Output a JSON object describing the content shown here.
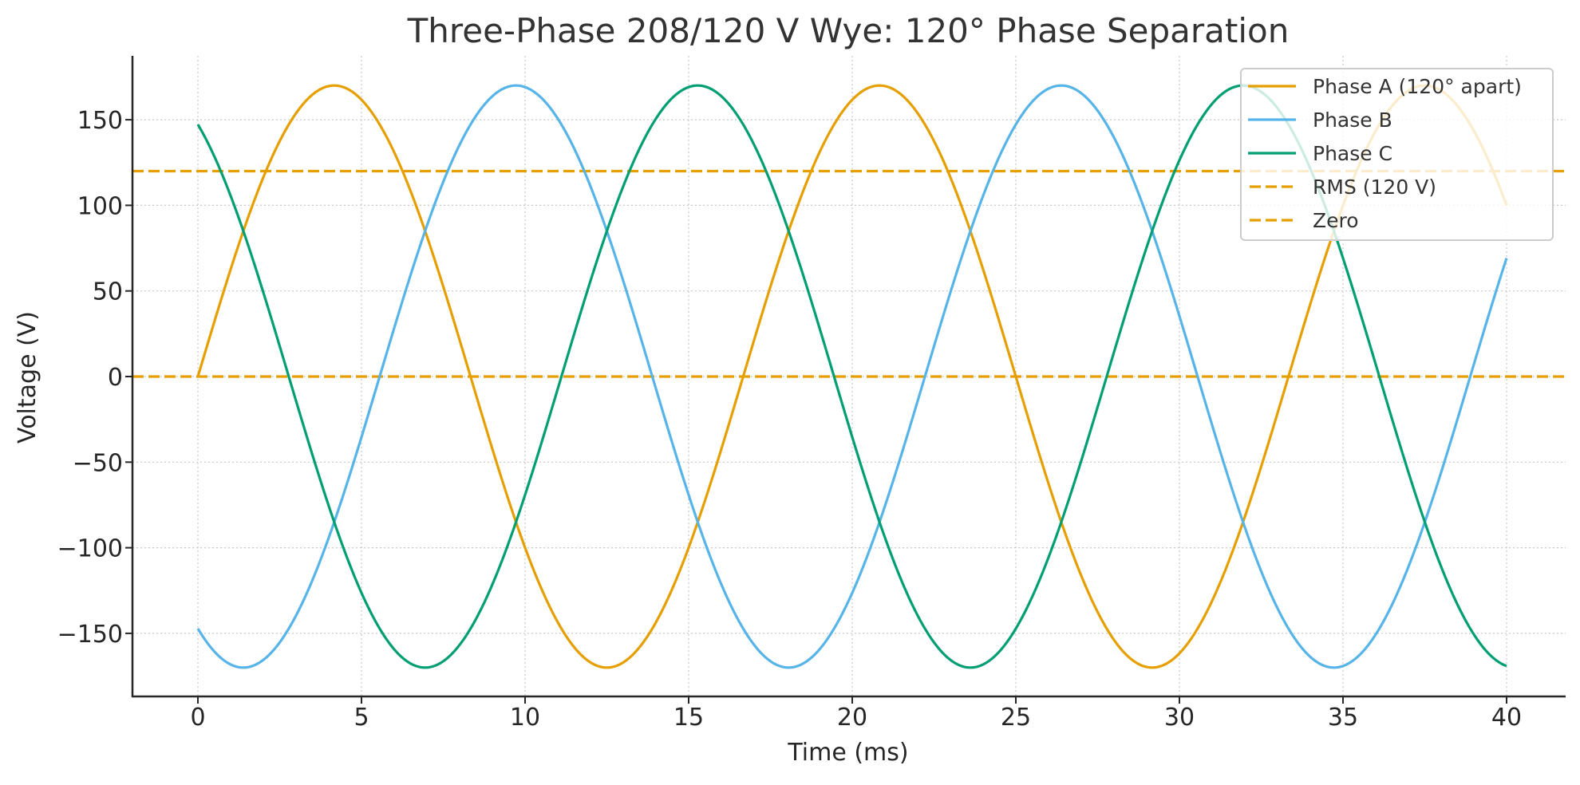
{
  "chart_data": {
    "type": "line",
    "title": "Three-Phase 208/120 V Wye: 120° Phase Separation",
    "xlabel": "Time (ms)",
    "ylabel": "Voltage (V)",
    "xlim": [
      -2,
      42
    ],
    "ylim": [
      -187,
      187
    ],
    "xticks": [
      0,
      5,
      10,
      15,
      20,
      25,
      30,
      35,
      40
    ],
    "yticks": [
      -150,
      -100,
      -50,
      0,
      50,
      100,
      150
    ],
    "ytick_labels": [
      "−150",
      "−100",
      "−50",
      "0",
      "50",
      "100",
      "150"
    ],
    "grid": true,
    "legend_position": "upper right",
    "waveform": {
      "amplitude_v": 170,
      "frequency_hz": 60,
      "t_start_ms": 0,
      "t_end_ms": 40
    },
    "x": [
      0,
      1,
      2,
      3,
      4,
      5,
      6,
      7,
      8,
      9,
      10,
      11,
      12,
      13,
      14,
      15,
      16,
      17,
      18,
      19,
      20,
      21,
      22,
      23,
      24,
      25,
      26,
      27,
      28,
      29,
      30,
      31,
      32,
      33,
      34,
      35,
      36,
      37,
      38,
      39,
      40
    ],
    "series": [
      {
        "name": "Phase A (120° apart)",
        "color": "#E69F00",
        "style": "solid",
        "phase_deg": 0,
        "values": [
          0,
          62.6,
          116.4,
          153.8,
          169.7,
          161.7,
          131.0,
          81.9,
          21.3,
          -42.3,
          -99.9,
          -143.5,
          -167.0,
          -167.0,
          -143.5,
          -99.9,
          -42.3,
          21.3,
          81.9,
          131.0,
          161.7,
          169.7,
          153.8,
          116.4,
          62.6,
          0,
          -62.6,
          -116.4,
          -153.8,
          -169.7,
          -161.7,
          -131.0,
          -81.9,
          -21.3,
          42.3,
          99.9,
          143.5,
          167.0,
          167.0,
          143.5,
          99.9
        ]
      },
      {
        "name": "Phase B",
        "color": "#56B4E9",
        "style": "solid",
        "phase_deg": -120,
        "values": [
          -147.2,
          -168.2,
          -165.5,
          -139.6,
          -94.1,
          -35.3,
          28.4,
          88.1,
          135.4,
          163.7,
          169.1,
          150.7,
          111.1,
          55.9,
          -7.1,
          -69.1,
          -121.5,
          -156.7,
          -170.0,
          -159.3,
          -126.3,
          -75.6,
          -14.2,
          49.1,
          105.6,
          147.2,
          168.2,
          165.5,
          139.6,
          94.1,
          35.3,
          -28.4,
          -88.1,
          -135.4,
          -163.7,
          -169.1,
          -150.7,
          -111.1,
          -55.9,
          7.1,
          69.1
        ]
      },
      {
        "name": "Phase C",
        "color": "#009E73",
        "style": "solid",
        "phase_deg": 120,
        "values": [
          147.2,
          105.6,
          49.1,
          -14.2,
          -75.6,
          -126.3,
          -159.3,
          -170.0,
          -156.7,
          -121.5,
          -69.1,
          -7.1,
          55.9,
          111.1,
          150.7,
          169.1,
          163.7,
          135.4,
          88.1,
          28.4,
          -35.3,
          -94.1,
          -139.6,
          -165.5,
          -168.2,
          -147.2,
          -105.6,
          -49.1,
          14.2,
          75.6,
          126.3,
          159.3,
          170.0,
          156.7,
          121.5,
          69.1,
          7.1,
          -55.9,
          -111.1,
          -150.7,
          -169.1
        ]
      }
    ],
    "hlines": [
      {
        "name": "RMS (120 V)",
        "y": 120,
        "color": "#E69F00",
        "style": "dashed"
      },
      {
        "name": "Zero",
        "y": 0,
        "color": "#E69F00",
        "style": "dashed"
      }
    ],
    "legend": [
      {
        "label": "Phase A (120° apart)",
        "color": "#E69F00",
        "style": "solid"
      },
      {
        "label": "Phase B",
        "color": "#56B4E9",
        "style": "solid"
      },
      {
        "label": "Phase C",
        "color": "#009E73",
        "style": "solid"
      },
      {
        "label": "RMS (120 V)",
        "color": "#E69F00",
        "style": "dashed"
      },
      {
        "label": "Zero",
        "color": "#E69F00",
        "style": "dashed"
      }
    ]
  }
}
